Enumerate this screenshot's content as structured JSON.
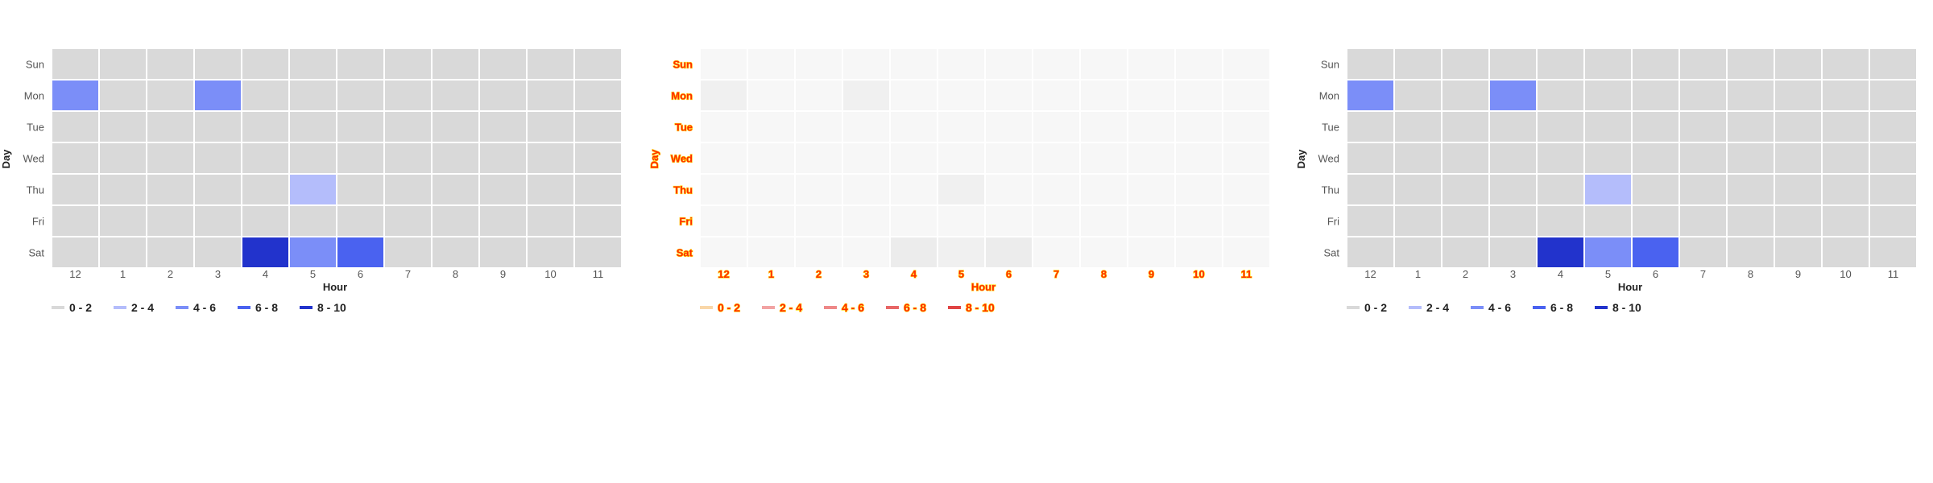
{
  "chart_data": [
    {
      "type": "heatmap",
      "variant": "normal",
      "xlabel": "Hour",
      "ylabel": "Day",
      "x_categories": [
        "12",
        "1",
        "2",
        "3",
        "4",
        "5",
        "6",
        "7",
        "8",
        "9",
        "10",
        "11"
      ],
      "y_categories": [
        "Sun",
        "Mon",
        "Tue",
        "Wed",
        "Thu",
        "Fri",
        "Sat"
      ],
      "values": [
        [
          0,
          0,
          0,
          0,
          0,
          0,
          0,
          0,
          0,
          0,
          0,
          0
        ],
        [
          5,
          0,
          0,
          4,
          0,
          0,
          0,
          0,
          0,
          0,
          0,
          0
        ],
        [
          0,
          0,
          0,
          0,
          0,
          0,
          0,
          0,
          0,
          0,
          0,
          0
        ],
        [
          0,
          0,
          0,
          0,
          0,
          0,
          0,
          0,
          0,
          0,
          0,
          0
        ],
        [
          0,
          0,
          0,
          0,
          0,
          2,
          0,
          0,
          0,
          0,
          0,
          0
        ],
        [
          0,
          0,
          0,
          0,
          0,
          0,
          0,
          0,
          0,
          0,
          0,
          0
        ],
        [
          0,
          0,
          0,
          0,
          9,
          4,
          6,
          0,
          0,
          0,
          0,
          0
        ]
      ],
      "legend": {
        "placement": "bottom-left",
        "items": [
          {
            "label": "0 - 2",
            "color": "#d9d9d9"
          },
          {
            "label": "2 - 4",
            "color": "#b4bdfb"
          },
          {
            "label": "4 - 6",
            "color": "#7b8ef8"
          },
          {
            "label": "6 - 8",
            "color": "#4a62f0"
          },
          {
            "label": "8 - 10",
            "color": "#2233cc"
          }
        ]
      },
      "colors": {
        "cell_low": "#d9d9d9",
        "cell_high": "#2233cc",
        "text": "#555555",
        "axis_title": "#222222"
      },
      "grid": false
    },
    {
      "type": "heatmap",
      "variant": "faded",
      "xlabel": "Hour",
      "ylabel": "Day",
      "x_categories": [
        "12",
        "1",
        "2",
        "3",
        "4",
        "5",
        "6",
        "7",
        "8",
        "9",
        "10",
        "11"
      ],
      "y_categories": [
        "Sun",
        "Mon",
        "Tue",
        "Wed",
        "Thu",
        "Fri",
        "Sat"
      ],
      "values": [
        [
          0,
          0,
          0,
          0,
          0,
          0,
          0,
          0,
          0,
          0,
          0,
          0
        ],
        [
          5,
          0,
          0,
          4,
          0,
          0,
          0,
          0,
          0,
          0,
          0,
          0
        ],
        [
          0,
          0,
          0,
          0,
          0,
          0,
          0,
          0,
          0,
          0,
          0,
          0
        ],
        [
          0,
          0,
          0,
          0,
          0,
          0,
          0,
          0,
          0,
          0,
          0,
          0
        ],
        [
          0,
          0,
          0,
          0,
          0,
          2,
          0,
          0,
          0,
          0,
          0,
          0
        ],
        [
          0,
          0,
          0,
          0,
          0,
          0,
          0,
          0,
          0,
          0,
          0,
          0
        ],
        [
          0,
          0,
          0,
          0,
          9,
          4,
          6,
          0,
          0,
          0,
          0,
          0
        ]
      ],
      "legend": {
        "placement": "bottom-left",
        "items": [
          {
            "label": "0 - 2",
            "color": "#f9d7a8"
          },
          {
            "label": "2 - 4",
            "color": "#f2a3a3"
          },
          {
            "label": "4 - 6",
            "color": "#ee8888"
          },
          {
            "label": "6 - 8",
            "color": "#e86666"
          },
          {
            "label": "8 - 10",
            "color": "#e04444"
          }
        ]
      },
      "colors": {
        "cell_base": "#f7f7f7",
        "cell_active": "#f0f0f0",
        "cell_peak": "#ececec",
        "text": "#ff2a00",
        "text_glow": "#ffd400"
      },
      "grid": false
    },
    {
      "type": "heatmap",
      "variant": "normal",
      "xlabel": "Hour",
      "ylabel": "Day",
      "x_categories": [
        "12",
        "1",
        "2",
        "3",
        "4",
        "5",
        "6",
        "7",
        "8",
        "9",
        "10",
        "11"
      ],
      "y_categories": [
        "Sun",
        "Mon",
        "Tue",
        "Wed",
        "Thu",
        "Fri",
        "Sat"
      ],
      "values": [
        [
          0,
          0,
          0,
          0,
          0,
          0,
          0,
          0,
          0,
          0,
          0,
          0
        ],
        [
          5,
          0,
          0,
          4,
          0,
          0,
          0,
          0,
          0,
          0,
          0,
          0
        ],
        [
          0,
          0,
          0,
          0,
          0,
          0,
          0,
          0,
          0,
          0,
          0,
          0
        ],
        [
          0,
          0,
          0,
          0,
          0,
          0,
          0,
          0,
          0,
          0,
          0,
          0
        ],
        [
          0,
          0,
          0,
          0,
          0,
          2,
          0,
          0,
          0,
          0,
          0,
          0
        ],
        [
          0,
          0,
          0,
          0,
          0,
          0,
          0,
          0,
          0,
          0,
          0,
          0
        ],
        [
          0,
          0,
          0,
          0,
          9,
          4,
          6,
          0,
          0,
          0,
          0,
          0
        ]
      ],
      "legend": {
        "placement": "bottom-left",
        "items": [
          {
            "label": "0 - 2",
            "color": "#d9d9d9"
          },
          {
            "label": "2 - 4",
            "color": "#b4bdfb"
          },
          {
            "label": "4 - 6",
            "color": "#7b8ef8"
          },
          {
            "label": "6 - 8",
            "color": "#4a62f0"
          },
          {
            "label": "8 - 10",
            "color": "#2233cc"
          }
        ]
      },
      "colors": {
        "cell_low": "#d9d9d9",
        "cell_high": "#2233cc",
        "text": "#555555",
        "axis_title": "#222222"
      },
      "grid": false
    }
  ]
}
